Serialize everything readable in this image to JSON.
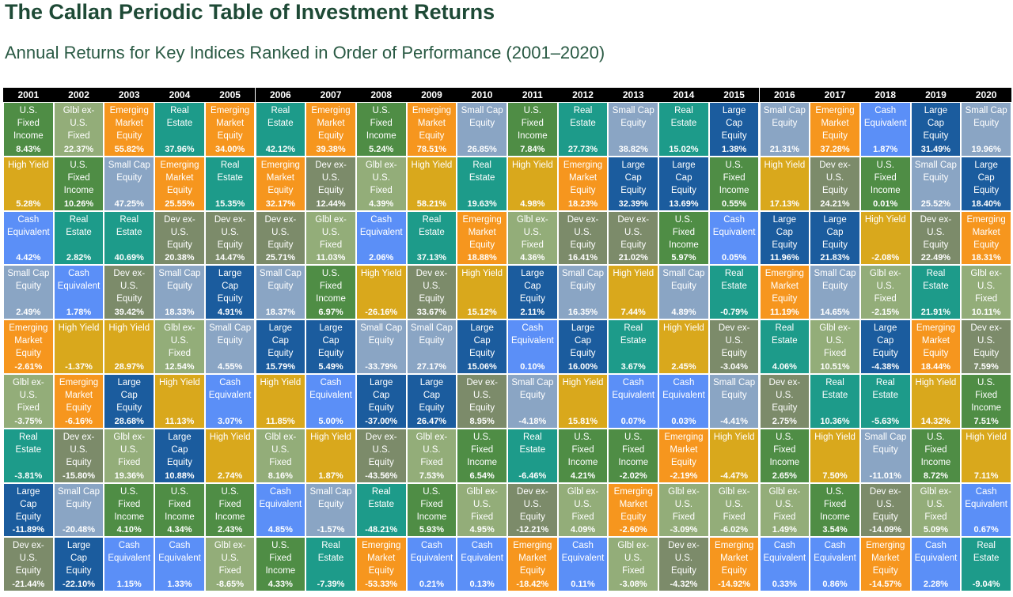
{
  "title": "The Callan Periodic Table of Investment Returns",
  "subtitle": "Annual Returns for Key Indices Ranked in Order of Performance (2001–2020)",
  "chart_data": {
    "type": "table",
    "years": [
      "2001",
      "2002",
      "2003",
      "2004",
      "2005",
      "2006",
      "2007",
      "2008",
      "2009",
      "2010",
      "2011",
      "2012",
      "2013",
      "2014",
      "2015",
      "2016",
      "2017",
      "2018",
      "2019",
      "2020"
    ],
    "asset_classes": {
      "lc": {
        "label": "Large\nCap\nEquity",
        "color": "#1b5c9e"
      },
      "sc": {
        "label": "Small Cap\nEquity",
        "color": "#8aa5c4"
      },
      "dev": {
        "label": "Dev ex-\nU.S.\nEquity",
        "color": "#7c8b6a"
      },
      "em": {
        "label": "Emerging\nMarket\nEquity",
        "color": "#f6961e"
      },
      "usfi": {
        "label": "U.S.\nFixed\nIncome",
        "color": "#4f8d45"
      },
      "hy": {
        "label": "High Yield",
        "color": "#d9a81c"
      },
      "gfi": {
        "label": "Glbl ex-\nU.S.\nFixed",
        "color": "#93ad79"
      },
      "re": {
        "label": "Real\nEstate",
        "color": "#1d9b8a"
      },
      "cash": {
        "label": "Cash\nEquivalent",
        "color": "#5b8ff7"
      }
    },
    "columns": [
      [
        [
          "usfi",
          "8.43%"
        ],
        [
          "hy",
          "5.28%"
        ],
        [
          "cash",
          "4.42%"
        ],
        [
          "sc",
          "2.49%"
        ],
        [
          "em",
          "-2.61%"
        ],
        [
          "gfi",
          "-3.75%"
        ],
        [
          "re",
          "-3.81%"
        ],
        [
          "lc",
          "-11.89%"
        ],
        [
          "dev",
          "-21.44%"
        ]
      ],
      [
        [
          "gfi",
          "22.37%"
        ],
        [
          "usfi",
          "10.26%"
        ],
        [
          "re",
          "2.82%"
        ],
        [
          "cash",
          "1.78%"
        ],
        [
          "hy",
          "-1.37%"
        ],
        [
          "em",
          "-6.16%"
        ],
        [
          "dev",
          "-15.80%"
        ],
        [
          "sc",
          "-20.48%"
        ],
        [
          "lc",
          "-22.10%"
        ]
      ],
      [
        [
          "em",
          "55.82%"
        ],
        [
          "sc",
          "47.25%"
        ],
        [
          "re",
          "40.69%"
        ],
        [
          "dev",
          "39.42%"
        ],
        [
          "hy",
          "28.97%"
        ],
        [
          "lc",
          "28.68%"
        ],
        [
          "gfi",
          "19.36%"
        ],
        [
          "usfi",
          "4.10%"
        ],
        [
          "cash",
          "1.15%"
        ]
      ],
      [
        [
          "re",
          "37.96%"
        ],
        [
          "em",
          "25.55%"
        ],
        [
          "dev",
          "20.38%"
        ],
        [
          "sc",
          "18.33%"
        ],
        [
          "gfi",
          "12.54%"
        ],
        [
          "hy",
          "11.13%"
        ],
        [
          "lc",
          "10.88%"
        ],
        [
          "usfi",
          "4.34%"
        ],
        [
          "cash",
          "1.33%"
        ]
      ],
      [
        [
          "em",
          "34.00%"
        ],
        [
          "re",
          "15.35%"
        ],
        [
          "dev",
          "14.47%"
        ],
        [
          "lc",
          "4.91%"
        ],
        [
          "sc",
          "4.55%"
        ],
        [
          "cash",
          "3.07%"
        ],
        [
          "hy",
          "2.74%"
        ],
        [
          "usfi",
          "2.43%"
        ],
        [
          "gfi",
          "-8.65%"
        ]
      ],
      [
        [
          "re",
          "42.12%"
        ],
        [
          "em",
          "32.17%"
        ],
        [
          "dev",
          "25.71%"
        ],
        [
          "sc",
          "18.37%"
        ],
        [
          "lc",
          "15.79%"
        ],
        [
          "hy",
          "11.85%"
        ],
        [
          "gfi",
          "8.16%"
        ],
        [
          "cash",
          "4.85%"
        ],
        [
          "usfi",
          "4.33%"
        ]
      ],
      [
        [
          "em",
          "39.38%"
        ],
        [
          "dev",
          "12.44%"
        ],
        [
          "gfi",
          "11.03%"
        ],
        [
          "usfi",
          "6.97%"
        ],
        [
          "lc",
          "5.49%"
        ],
        [
          "cash",
          "5.00%"
        ],
        [
          "hy",
          "1.87%"
        ],
        [
          "sc",
          "-1.57%"
        ],
        [
          "re",
          "-7.39%"
        ]
      ],
      [
        [
          "usfi",
          "5.24%"
        ],
        [
          "gfi",
          "4.39%"
        ],
        [
          "cash",
          "2.06%"
        ],
        [
          "hy",
          "-26.16%"
        ],
        [
          "sc",
          "-33.79%"
        ],
        [
          "lc",
          "-37.00%"
        ],
        [
          "dev",
          "-43.56%"
        ],
        [
          "re",
          "-48.21%"
        ],
        [
          "em",
          "-53.33%"
        ]
      ],
      [
        [
          "em",
          "78.51%"
        ],
        [
          "hy",
          "58.21%"
        ],
        [
          "re",
          "37.13%"
        ],
        [
          "dev",
          "33.67%"
        ],
        [
          "sc",
          "27.17%"
        ],
        [
          "lc",
          "26.47%"
        ],
        [
          "gfi",
          "7.53%"
        ],
        [
          "usfi",
          "5.93%"
        ],
        [
          "cash",
          "0.21%"
        ]
      ],
      [
        [
          "sc",
          "26.85%"
        ],
        [
          "re",
          "19.63%"
        ],
        [
          "em",
          "18.88%"
        ],
        [
          "hy",
          "15.12%"
        ],
        [
          "lc",
          "15.06%"
        ],
        [
          "dev",
          "8.95%"
        ],
        [
          "usfi",
          "6.54%"
        ],
        [
          "gfi",
          "4.95%"
        ],
        [
          "cash",
          "0.13%"
        ]
      ],
      [
        [
          "usfi",
          "7.84%"
        ],
        [
          "hy",
          "4.98%"
        ],
        [
          "gfi",
          "4.36%"
        ],
        [
          "lc",
          "2.11%"
        ],
        [
          "cash",
          "0.10%"
        ],
        [
          "sc",
          "-4.18%"
        ],
        [
          "re",
          "-6.46%"
        ],
        [
          "dev",
          "-12.21%"
        ],
        [
          "em",
          "-18.42%"
        ]
      ],
      [
        [
          "re",
          "27.73%"
        ],
        [
          "em",
          "18.23%"
        ],
        [
          "dev",
          "16.41%"
        ],
        [
          "sc",
          "16.35%"
        ],
        [
          "lc",
          "16.00%"
        ],
        [
          "hy",
          "15.81%"
        ],
        [
          "usfi",
          "4.21%"
        ],
        [
          "gfi",
          "4.09%"
        ],
        [
          "cash",
          "0.11%"
        ]
      ],
      [
        [
          "sc",
          "38.82%"
        ],
        [
          "lc",
          "32.39%"
        ],
        [
          "dev",
          "21.02%"
        ],
        [
          "hy",
          "7.44%"
        ],
        [
          "re",
          "3.67%"
        ],
        [
          "cash",
          "0.07%"
        ],
        [
          "usfi",
          "-2.02%"
        ],
        [
          "em",
          "-2.60%"
        ],
        [
          "gfi",
          "-3.08%"
        ]
      ],
      [
        [
          "re",
          "15.02%"
        ],
        [
          "lc",
          "13.69%"
        ],
        [
          "usfi",
          "5.97%"
        ],
        [
          "sc",
          "4.89%"
        ],
        [
          "hy",
          "2.45%"
        ],
        [
          "cash",
          "0.03%"
        ],
        [
          "em",
          "-2.19%"
        ],
        [
          "gfi",
          "-3.09%"
        ],
        [
          "dev",
          "-4.32%"
        ]
      ],
      [
        [
          "lc",
          "1.38%"
        ],
        [
          "usfi",
          "0.55%"
        ],
        [
          "cash",
          "0.05%"
        ],
        [
          "re",
          "-0.79%"
        ],
        [
          "dev",
          "-3.04%"
        ],
        [
          "sc",
          "-4.41%"
        ],
        [
          "hy",
          "-4.47%"
        ],
        [
          "gfi",
          "-6.02%"
        ],
        [
          "em",
          "-14.92%"
        ]
      ],
      [
        [
          "sc",
          "21.31%"
        ],
        [
          "hy",
          "17.13%"
        ],
        [
          "lc",
          "11.96%"
        ],
        [
          "em",
          "11.19%"
        ],
        [
          "re",
          "4.06%"
        ],
        [
          "dev",
          "2.75%"
        ],
        [
          "usfi",
          "2.65%"
        ],
        [
          "gfi",
          "1.49%"
        ],
        [
          "cash",
          "0.33%"
        ]
      ],
      [
        [
          "em",
          "37.28%"
        ],
        [
          "dev",
          "24.21%"
        ],
        [
          "lc",
          "21.83%"
        ],
        [
          "sc",
          "14.65%"
        ],
        [
          "gfi",
          "10.51%"
        ],
        [
          "re",
          "10.36%"
        ],
        [
          "hy",
          "7.50%"
        ],
        [
          "usfi",
          "3.54%"
        ],
        [
          "cash",
          "0.86%"
        ]
      ],
      [
        [
          "cash",
          "1.87%"
        ],
        [
          "usfi",
          "0.01%"
        ],
        [
          "hy",
          "-2.08%"
        ],
        [
          "gfi",
          "-2.15%"
        ],
        [
          "lc",
          "-4.38%"
        ],
        [
          "re",
          "-5.63%"
        ],
        [
          "sc",
          "-11.01%"
        ],
        [
          "dev",
          "-14.09%"
        ],
        [
          "em",
          "-14.57%"
        ]
      ],
      [
        [
          "lc",
          "31.49%"
        ],
        [
          "sc",
          "25.52%"
        ],
        [
          "dev",
          "22.49%"
        ],
        [
          "re",
          "21.91%"
        ],
        [
          "em",
          "18.44%"
        ],
        [
          "hy",
          "14.32%"
        ],
        [
          "usfi",
          "8.72%"
        ],
        [
          "gfi",
          "5.09%"
        ],
        [
          "cash",
          "2.28%"
        ]
      ],
      [
        [
          "sc",
          "19.96%"
        ],
        [
          "lc",
          "18.40%"
        ],
        [
          "em",
          "18.31%"
        ],
        [
          "gfi",
          "10.11%"
        ],
        [
          "dev",
          "7.59%"
        ],
        [
          "usfi",
          "7.51%"
        ],
        [
          "hy",
          "7.11%"
        ],
        [
          "cash",
          "0.67%"
        ],
        [
          "re",
          "-9.04%"
        ]
      ]
    ]
  }
}
